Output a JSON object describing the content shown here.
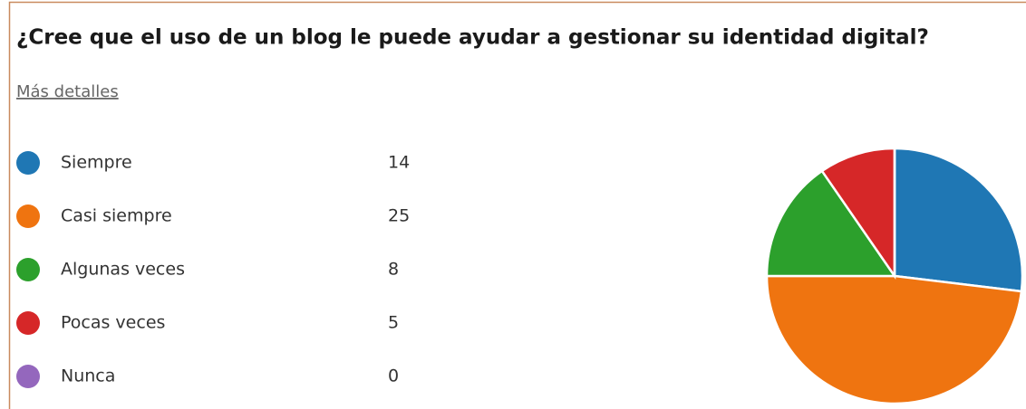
{
  "chart_data": {
    "type": "pie",
    "title": "¿Cree que el uso de un blog le puede ayudar a gestionar su identidad digital?",
    "link": "Más detalles",
    "categories": [
      "Siempre",
      "Casi siempre",
      "Algunas veces",
      "Pocas veces",
      "Nunca"
    ],
    "values": [
      14,
      25,
      8,
      5,
      0
    ],
    "colors": [
      "#1f77b4",
      "#ef7410",
      "#2ca02c",
      "#d62728",
      "#9467bd"
    ]
  }
}
